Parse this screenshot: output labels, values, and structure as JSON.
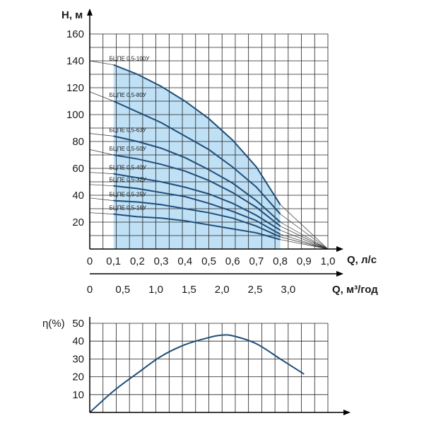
{
  "chart_data": [
    {
      "type": "line",
      "y_axis_label": "H, м",
      "x_axis_label": "Q, л/с",
      "x2_axis_label": "Q, м³/год",
      "x_ticks": [
        "0",
        "0,1",
        "0,2",
        "0,3",
        "0,4",
        "0,5",
        "0,6",
        "0,7",
        "0,8",
        "0,9",
        "1,0"
      ],
      "x2_ticks": [
        {
          "value": 0,
          "label": "0"
        },
        {
          "value": 0.5,
          "label": "0,5"
        },
        {
          "value": 1.0,
          "label": "1,0"
        },
        {
          "value": 1.5,
          "label": "1,5"
        },
        {
          "value": 2.0,
          "label": "2,0"
        },
        {
          "value": 2.5,
          "label": "2,5"
        },
        {
          "value": 3.0,
          "label": "3,0"
        }
      ],
      "y_ticks": [
        "20",
        "40",
        "60",
        "80",
        "100",
        "120",
        "140",
        "160"
      ],
      "xlim": [
        0,
        1.0
      ],
      "ylim": [
        0,
        160
      ],
      "x2lim": [
        0,
        3.6
      ],
      "grid": true,
      "shaded_range_q": [
        0.1,
        0.8
      ],
      "colors": {
        "curve": "#1f4e79",
        "fill": "#bfe0f5",
        "grid": "#222222"
      },
      "series": [
        {
          "name": "БЦПЕ 0,5-100У",
          "label_q": 0.36,
          "h0": 140,
          "points": [
            [
              0.1,
              137
            ],
            [
              0.2,
              130
            ],
            [
              0.3,
              121
            ],
            [
              0.4,
              110
            ],
            [
              0.5,
              97
            ],
            [
              0.6,
              81
            ],
            [
              0.7,
              61
            ],
            [
              0.8,
              33
            ]
          ]
        },
        {
          "name": "БЦПЕ 0,5-80У",
          "label_q": 0.36,
          "h0": 117,
          "points": [
            [
              0.1,
              110
            ],
            [
              0.2,
              102
            ],
            [
              0.3,
              94
            ],
            [
              0.4,
              84
            ],
            [
              0.5,
              74
            ],
            [
              0.6,
              61
            ],
            [
              0.7,
              46
            ],
            [
              0.8,
              26
            ]
          ]
        },
        {
          "name": "БЦПЕ 0,5-63У",
          "label_q": 0.36,
          "h0": 86,
          "points": [
            [
              0.1,
              84
            ],
            [
              0.2,
              80
            ],
            [
              0.3,
              75
            ],
            [
              0.4,
              68
            ],
            [
              0.5,
              59
            ],
            [
              0.6,
              49
            ],
            [
              0.7,
              36
            ],
            [
              0.8,
              20
            ]
          ]
        },
        {
          "name": "БЦПЕ 0,5-50У",
          "label_q": 0.36,
          "h0": 74,
          "points": [
            [
              0.1,
              70
            ],
            [
              0.2,
              67
            ],
            [
              0.3,
              63
            ],
            [
              0.4,
              58
            ],
            [
              0.5,
              51
            ],
            [
              0.6,
              42
            ],
            [
              0.7,
              31
            ],
            [
              0.8,
              17
            ]
          ]
        },
        {
          "name": "БЦПЕ 0,5-40У",
          "label_q": 0.36,
          "h0": 57,
          "points": [
            [
              0.1,
              56
            ],
            [
              0.2,
              53
            ],
            [
              0.3,
              50
            ],
            [
              0.4,
              46
            ],
            [
              0.5,
              41
            ],
            [
              0.6,
              34
            ],
            [
              0.7,
              25
            ],
            [
              0.8,
              14
            ]
          ]
        },
        {
          "name": "БЦПЕ 0,5-32У",
          "label_q": 0.36,
          "h0": 48,
          "points": [
            [
              0.1,
              47
            ],
            [
              0.2,
              45
            ],
            [
              0.3,
              42
            ],
            [
              0.4,
              39
            ],
            [
              0.5,
              34
            ],
            [
              0.6,
              28
            ],
            [
              0.7,
              21
            ],
            [
              0.8,
              11
            ]
          ]
        },
        {
          "name": "БЦПЕ 0,5-25У",
          "label_q": 0.36,
          "h0": 38,
          "points": [
            [
              0.1,
              36
            ],
            [
              0.2,
              35
            ],
            [
              0.3,
              33
            ],
            [
              0.4,
              30
            ],
            [
              0.5,
              27
            ],
            [
              0.6,
              23
            ],
            [
              0.7,
              17
            ],
            [
              0.8,
              9
            ]
          ]
        },
        {
          "name": "БЦПЕ 0,5-16У",
          "label_q": 0.36,
          "h0": 27,
          "points": [
            [
              0.1,
              26
            ],
            [
              0.2,
              24
            ],
            [
              0.3,
              23
            ],
            [
              0.4,
              21
            ],
            [
              0.5,
              18
            ],
            [
              0.6,
              15
            ],
            [
              0.7,
              12
            ],
            [
              0.8,
              7
            ]
          ]
        }
      ]
    },
    {
      "type": "line",
      "y_axis_label": "η(%)",
      "y_ticks": [
        "10",
        "20",
        "30",
        "40",
        "50"
      ],
      "xlim": [
        0,
        1.0
      ],
      "ylim": [
        0,
        50
      ],
      "grid": true,
      "colors": {
        "curve": "#1f4e79",
        "grid": "#222222"
      },
      "series": [
        {
          "points": [
            [
              0,
              0
            ],
            [
              0.1,
              12
            ],
            [
              0.2,
              22
            ],
            [
              0.3,
              31.5
            ],
            [
              0.4,
              38
            ],
            [
              0.5,
              42
            ],
            [
              0.55,
              43.3
            ],
            [
              0.6,
              43
            ],
            [
              0.7,
              38.5
            ],
            [
              0.8,
              30
            ],
            [
              0.9,
              21.5
            ]
          ]
        }
      ]
    }
  ]
}
